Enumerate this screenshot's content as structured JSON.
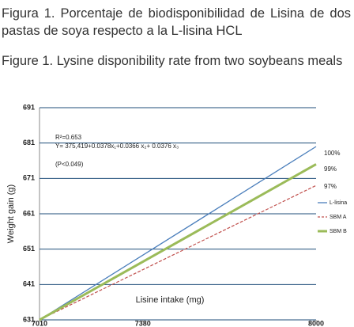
{
  "chart_data": {
    "type": "line",
    "title": "Figura 1. Porcentaje de biodisponibilidad de Lisina de dos pastas de soya respecto a la L-lisina HCL",
    "subtitle": "Figure 1. Lysine disponibility rate from two soybeans meals",
    "x_label": "Lisine intake (mg)",
    "y_label": "Weight gain (g)",
    "annotations": [
      "R²=0.653",
      "Y= 375,419+0.0378x₁+0.0366 x₂+ 0.0376 x₃",
      "(P<0.049)"
    ],
    "end_labels": [
      "100%",
      "99%",
      "97%"
    ],
    "xlim": [
      7010,
      8000
    ],
    "xticks": [
      7010,
      7380,
      8000
    ],
    "ylim": [
      631,
      691
    ],
    "yticks": [
      631,
      641,
      651,
      661,
      671,
      681,
      691
    ],
    "grid": true,
    "legend": "right",
    "series": [
      {
        "name": "L-lisina",
        "color": "#4a7ebb",
        "line_style": "solid",
        "line_width": 1.3,
        "x": [
          7010,
          8000
        ],
        "values": [
          631,
          680
        ]
      },
      {
        "name": "SBM A",
        "color": "#c0504d",
        "line_style": "dashed",
        "line_width": 1.2,
        "x": [
          7010,
          8000
        ],
        "values": [
          631,
          669
        ]
      },
      {
        "name": "SBM B",
        "color": "#9bbb59",
        "line_style": "solid",
        "line_width": 3,
        "x": [
          7010,
          8000
        ],
        "values": [
          631,
          675
        ]
      }
    ]
  }
}
